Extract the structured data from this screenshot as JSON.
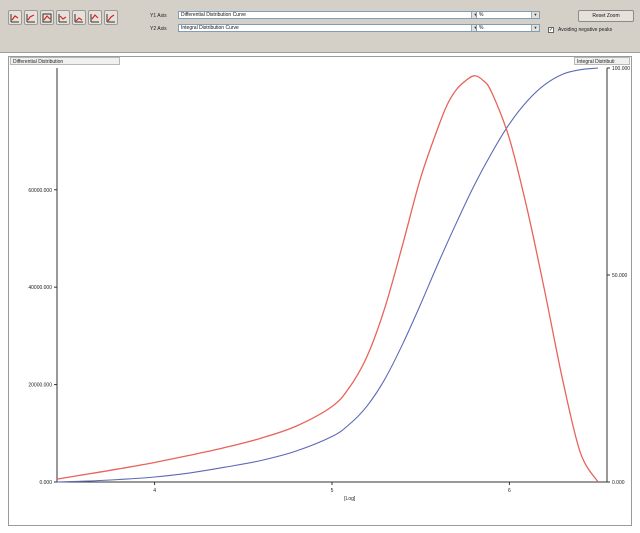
{
  "toolbar": {
    "tool_icons": [
      "chart-tool-1-icon",
      "chart-tool-2-icon",
      "chart-tool-3-icon",
      "chart-tool-4-icon",
      "chart-tool-5-icon",
      "chart-tool-6-icon",
      "chart-tool-7-icon"
    ],
    "y1_label": "Y1 Axis",
    "y1_value": "Differential Distribution Curve",
    "y1_unit": "%",
    "y2_label": "Y2 Axis",
    "y2_value": "Integral Distribution Curve",
    "y2_unit": "%",
    "reset_zoom": "Reset Zoom",
    "avoid_negative_label": "Avoiding negative peaks",
    "avoid_negative_checked": true
  },
  "plot": {
    "left_header": "Differential Distribution",
    "right_header": "Integral Distributi"
  },
  "chart_data": {
    "type": "line",
    "xlabel": "[Log]",
    "x_ticks": [
      "4",
      "5",
      "6"
    ],
    "xlim": [
      3.45,
      6.55
    ],
    "y_left_ticks": [
      "0.000",
      "20000.000",
      "40000.000",
      "60000.000"
    ],
    "y_left_lim": [
      0,
      85000
    ],
    "y_right_ticks": [
      "0.000",
      "50.000",
      "100.000"
    ],
    "y_right_lim": [
      0,
      100
    ],
    "colors": {
      "differential": "#e8645a",
      "integral": "#5c6ab4"
    },
    "series": [
      {
        "axis": "left",
        "x": [
          3.45,
          3.6,
          3.8,
          4.0,
          4.2,
          4.4,
          4.6,
          4.8,
          5.0,
          5.1,
          5.2,
          5.3,
          5.4,
          5.5,
          5.6,
          5.65,
          5.7,
          5.75,
          5.8,
          5.85,
          5.9,
          6.0,
          6.1,
          6.2,
          6.3,
          6.4,
          6.5
        ],
        "y": [
          600,
          1500,
          2700,
          4000,
          5500,
          7100,
          9000,
          11500,
          15500,
          19500,
          26000,
          36000,
          49000,
          62500,
          73000,
          77500,
          80500,
          82300,
          83400,
          82500,
          80000,
          70500,
          56000,
          39000,
          21000,
          6000,
          0
        ]
      },
      {
        "axis": "right",
        "x": [
          3.45,
          3.6,
          3.8,
          4.0,
          4.2,
          4.4,
          4.6,
          4.8,
          5.0,
          5.1,
          5.2,
          5.3,
          5.4,
          5.5,
          5.6,
          5.7,
          5.8,
          5.9,
          6.0,
          6.1,
          6.2,
          6.3,
          6.4,
          6.5
        ],
        "y": [
          0,
          0.2,
          0.6,
          1.2,
          2.2,
          3.6,
          5.2,
          7.5,
          11,
          14,
          18.5,
          25,
          33.5,
          43,
          53,
          62.5,
          71.5,
          79.5,
          86.5,
          92,
          96,
          98.5,
          99.6,
          100
        ]
      }
    ]
  }
}
